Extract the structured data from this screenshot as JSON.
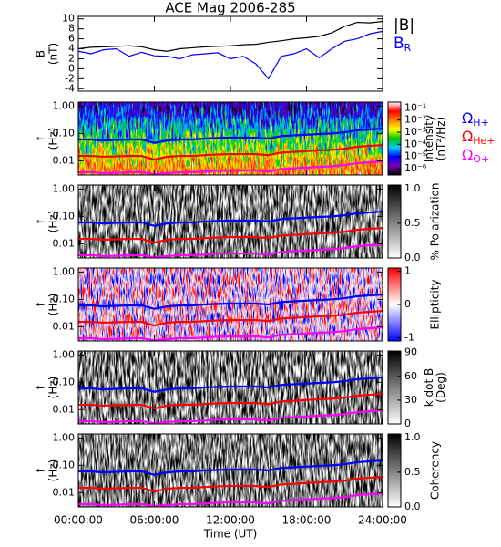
{
  "chart_data": [
    {
      "type": "line",
      "title": "ACE Mag 2006-285",
      "ylabel": [
        "B",
        "(nT)"
      ],
      "x": [
        0,
        1,
        2,
        3,
        4,
        5,
        6,
        7,
        8,
        9,
        10,
        11,
        12,
        13,
        14,
        15,
        16,
        17,
        18,
        19,
        20,
        21,
        22,
        23,
        24
      ],
      "xlim": [
        0,
        24
      ],
      "xticks": [
        {
          "value": 0,
          "label": "00:00:00"
        },
        {
          "value": 6,
          "label": "06:00:00"
        },
        {
          "value": 12,
          "label": "12:00:00"
        },
        {
          "value": 18,
          "label": "18:00:00"
        },
        {
          "value": 24,
          "label": "24:00:00"
        }
      ],
      "ylim": [
        -4.5,
        10.5
      ],
      "yticks": [
        -4,
        -2,
        0,
        2,
        4,
        6,
        8,
        10
      ],
      "series": [
        {
          "name": "|B|",
          "color": "#000000",
          "values": [
            4,
            4.3,
            4.4,
            4.5,
            4.6,
            4.4,
            3.8,
            3.5,
            4,
            4.2,
            4.4,
            4.5,
            4.6,
            4.8,
            4.9,
            5.3,
            5.6,
            6,
            6.2,
            6.5,
            7.2,
            8.5,
            9.3,
            9.2,
            9.5
          ]
        },
        {
          "name": "BR",
          "color": "#0000ff",
          "values": [
            3.5,
            3,
            3.8,
            4,
            2.5,
            3.3,
            2.6,
            2.5,
            2,
            2.8,
            3,
            3.2,
            2,
            2.5,
            1,
            -2,
            2.5,
            3,
            4,
            2.2,
            4,
            5.5,
            6,
            7,
            7.5
          ]
        }
      ]
    },
    {
      "type": "spectrogram",
      "ylabel": [
        "f",
        "(Hz)"
      ],
      "log_y": true,
      "x": [
        0,
        1,
        2,
        3,
        4,
        5,
        6,
        7,
        8,
        9,
        10,
        11,
        12,
        13,
        14,
        15,
        16,
        17,
        18,
        19,
        20,
        21,
        22,
        23,
        24
      ],
      "xlim": [
        0,
        24
      ],
      "xticks": [
        {
          "value": 0,
          "label": "00:00:00"
        },
        {
          "value": 6,
          "label": "06:00:00"
        },
        {
          "value": 12,
          "label": "12:00:00"
        },
        {
          "value": 18,
          "label": "18:00:00"
        },
        {
          "value": 24,
          "label": "24:00:00"
        }
      ],
      "ylim": [
        0.003,
        1.4
      ],
      "yticks": [
        {
          "value": 1,
          "label": "1.00"
        },
        {
          "value": 0.1,
          "label": "0.10"
        },
        {
          "value": 0.01,
          "label": "0.01"
        }
      ],
      "colorbar": {
        "label": [
          "Intensity",
          "(nT²/Hz)"
        ],
        "log": true,
        "lim": [
          3e-07,
          0.3
        ],
        "ticks": [
          {
            "value": 0.1,
            "label": "10⁻¹"
          },
          {
            "value": 0.01,
            "label": "10⁻²"
          },
          {
            "value": 0.001,
            "label": "10⁻³"
          },
          {
            "value": 0.0001,
            "label": "10⁻⁴"
          },
          {
            "value": 1e-05,
            "label": "10⁻⁵"
          },
          {
            "value": 1e-06,
            "label": "10⁻⁶"
          }
        ],
        "colors": [
          "#000000",
          "#7a00b0",
          "#0000ff",
          "#00c8ff",
          "#00c800",
          "#ffff00",
          "#ff8000",
          "#ff0000",
          "#ffffff"
        ]
      },
      "series": [
        {
          "name": "ΩH+",
          "color": "#0000ff",
          "values": [
            0.06,
            0.06,
            0.055,
            0.058,
            0.06,
            0.06,
            0.045,
            0.055,
            0.06,
            0.06,
            0.065,
            0.068,
            0.07,
            0.07,
            0.07,
            0.065,
            0.08,
            0.085,
            0.09,
            0.095,
            0.1,
            0.11,
            0.13,
            0.14,
            0.15
          ]
        },
        {
          "name": "ΩHe+",
          "color": "#ff0000",
          "values": [
            0.015,
            0.015,
            0.014,
            0.0145,
            0.015,
            0.015,
            0.011,
            0.014,
            0.015,
            0.015,
            0.016,
            0.017,
            0.0175,
            0.0175,
            0.0175,
            0.016,
            0.02,
            0.021,
            0.0225,
            0.024,
            0.025,
            0.0275,
            0.0325,
            0.035,
            0.0375
          ]
        },
        {
          "name": "ΩO+",
          "color": "#ff00ff",
          "values": [
            0.0038,
            0.0038,
            0.0035,
            0.0036,
            0.0038,
            0.0038,
            0.0032,
            0.0035,
            0.0038,
            0.0038,
            0.004,
            0.0043,
            0.0044,
            0.0044,
            0.0044,
            0.004,
            0.005,
            0.0053,
            0.0056,
            0.006,
            0.0063,
            0.0069,
            0.0081,
            0.0088,
            0.0094
          ]
        }
      ]
    },
    {
      "type": "spectrogram",
      "ylabel": [
        "f",
        "(Hz)"
      ],
      "log_y": true,
      "x": [
        0,
        1,
        2,
        3,
        4,
        5,
        6,
        7,
        8,
        9,
        10,
        11,
        12,
        13,
        14,
        15,
        16,
        17,
        18,
        19,
        20,
        21,
        22,
        23,
        24
      ],
      "xlim": [
        0,
        24
      ],
      "xticks": [
        {
          "value": 0,
          "label": "00:00:00"
        },
        {
          "value": 6,
          "label": "06:00:00"
        },
        {
          "value": 12,
          "label": "12:00:00"
        },
        {
          "value": 18,
          "label": "18:00:00"
        },
        {
          "value": 24,
          "label": "24:00:00"
        }
      ],
      "ylim": [
        0.003,
        1.4
      ],
      "yticks": [
        {
          "value": 1,
          "label": "1.00"
        },
        {
          "value": 0.1,
          "label": "0.10"
        },
        {
          "value": 0.01,
          "label": "0.01"
        }
      ],
      "colorbar": {
        "label": [
          "% Polarization"
        ],
        "log": false,
        "lim": [
          0,
          1.05
        ],
        "ticks": [
          {
            "value": 0,
            "label": "0.0"
          },
          {
            "value": 0.5,
            "label": "0.5"
          },
          {
            "value": 1,
            "label": "1.0"
          }
        ],
        "colors": [
          "#ffffff",
          "#000000"
        ]
      },
      "series": [
        {
          "color": "#0000ff",
          "values": [
            0.06,
            0.06,
            0.055,
            0.058,
            0.06,
            0.06,
            0.045,
            0.055,
            0.06,
            0.06,
            0.065,
            0.068,
            0.07,
            0.07,
            0.07,
            0.065,
            0.08,
            0.085,
            0.09,
            0.095,
            0.1,
            0.11,
            0.13,
            0.14,
            0.15
          ]
        },
        {
          "color": "#ff0000",
          "values": [
            0.015,
            0.015,
            0.014,
            0.0145,
            0.015,
            0.015,
            0.011,
            0.014,
            0.015,
            0.015,
            0.016,
            0.017,
            0.0175,
            0.0175,
            0.0175,
            0.016,
            0.02,
            0.021,
            0.0225,
            0.024,
            0.025,
            0.0275,
            0.0325,
            0.035,
            0.0375
          ]
        },
        {
          "color": "#ff00ff",
          "values": [
            0.0038,
            0.0038,
            0.0035,
            0.0036,
            0.0038,
            0.0038,
            0.0032,
            0.0035,
            0.0038,
            0.0038,
            0.004,
            0.0043,
            0.0044,
            0.0044,
            0.0044,
            0.004,
            0.005,
            0.0053,
            0.0056,
            0.006,
            0.0063,
            0.0069,
            0.0081,
            0.0088,
            0.0094
          ]
        }
      ]
    },
    {
      "type": "spectrogram",
      "ylabel": [
        "f",
        "(Hz)"
      ],
      "log_y": true,
      "x": [
        0,
        1,
        2,
        3,
        4,
        5,
        6,
        7,
        8,
        9,
        10,
        11,
        12,
        13,
        14,
        15,
        16,
        17,
        18,
        19,
        20,
        21,
        22,
        23,
        24
      ],
      "xlim": [
        0,
        24
      ],
      "xticks": [
        {
          "value": 0,
          "label": "00:00:00"
        },
        {
          "value": 6,
          "label": "06:00:00"
        },
        {
          "value": 12,
          "label": "12:00:00"
        },
        {
          "value": 18,
          "label": "18:00:00"
        },
        {
          "value": 24,
          "label": "24:00:00"
        }
      ],
      "ylim": [
        0.003,
        1.4
      ],
      "yticks": [
        {
          "value": 1,
          "label": "1.00"
        },
        {
          "value": 0.1,
          "label": "0.10"
        },
        {
          "value": 0.01,
          "label": "0.01"
        }
      ],
      "colorbar": {
        "label": [
          "Ellipticity"
        ],
        "log": false,
        "lim": [
          -1.1,
          1.1
        ],
        "ticks": [
          -1,
          0,
          1
        ],
        "colors": [
          "#0000ff",
          "#ffffff",
          "#ff0000"
        ]
      },
      "series": [
        {
          "color": "#0000ff",
          "values": [
            0.06,
            0.06,
            0.055,
            0.058,
            0.06,
            0.06,
            0.045,
            0.055,
            0.06,
            0.06,
            0.065,
            0.068,
            0.07,
            0.07,
            0.07,
            0.065,
            0.08,
            0.085,
            0.09,
            0.095,
            0.1,
            0.11,
            0.13,
            0.14,
            0.15
          ]
        },
        {
          "color": "#ff0000",
          "values": [
            0.015,
            0.015,
            0.014,
            0.0145,
            0.015,
            0.015,
            0.011,
            0.014,
            0.015,
            0.015,
            0.016,
            0.017,
            0.0175,
            0.0175,
            0.0175,
            0.016,
            0.02,
            0.021,
            0.0225,
            0.024,
            0.025,
            0.0275,
            0.0325,
            0.035,
            0.0375
          ]
        },
        {
          "color": "#ff00ff",
          "values": [
            0.0038,
            0.0038,
            0.0035,
            0.0036,
            0.0038,
            0.0038,
            0.0032,
            0.0035,
            0.0038,
            0.0038,
            0.004,
            0.0043,
            0.0044,
            0.0044,
            0.0044,
            0.004,
            0.005,
            0.0053,
            0.0056,
            0.006,
            0.0063,
            0.0069,
            0.0081,
            0.0088,
            0.0094
          ]
        }
      ]
    },
    {
      "type": "spectrogram",
      "ylabel": [
        "f",
        "(Hz)"
      ],
      "log_y": true,
      "x": [
        0,
        1,
        2,
        3,
        4,
        5,
        6,
        7,
        8,
        9,
        10,
        11,
        12,
        13,
        14,
        15,
        16,
        17,
        18,
        19,
        20,
        21,
        22,
        23,
        24
      ],
      "xlim": [
        0,
        24
      ],
      "xticks": [
        {
          "value": 0,
          "label": "00:00:00"
        },
        {
          "value": 6,
          "label": "06:00:00"
        },
        {
          "value": 12,
          "label": "12:00:00"
        },
        {
          "value": 18,
          "label": "18:00:00"
        },
        {
          "value": 24,
          "label": "24:00:00"
        }
      ],
      "ylim": [
        0.003,
        1.4
      ],
      "yticks": [
        {
          "value": 1,
          "label": "1.00"
        },
        {
          "value": 0.1,
          "label": "0.10"
        },
        {
          "value": 0.01,
          "label": "0.01"
        }
      ],
      "colorbar": {
        "label": [
          "k dot B",
          "(Deg)"
        ],
        "log": false,
        "lim": [
          0,
          92
        ],
        "ticks": [
          0,
          30,
          60,
          90
        ],
        "colors": [
          "#ffffff",
          "#000000"
        ]
      },
      "series": [
        {
          "color": "#0000ff",
          "values": [
            0.06,
            0.06,
            0.055,
            0.058,
            0.06,
            0.06,
            0.045,
            0.055,
            0.06,
            0.06,
            0.065,
            0.068,
            0.07,
            0.07,
            0.07,
            0.065,
            0.08,
            0.085,
            0.09,
            0.095,
            0.1,
            0.11,
            0.13,
            0.14,
            0.15
          ]
        },
        {
          "color": "#ff0000",
          "values": [
            0.015,
            0.015,
            0.014,
            0.0145,
            0.015,
            0.015,
            0.011,
            0.014,
            0.015,
            0.015,
            0.016,
            0.017,
            0.0175,
            0.0175,
            0.0175,
            0.016,
            0.02,
            0.021,
            0.0225,
            0.024,
            0.025,
            0.0275,
            0.0325,
            0.035,
            0.0375
          ]
        },
        {
          "color": "#ff00ff",
          "values": [
            0.0038,
            0.0038,
            0.0035,
            0.0036,
            0.0038,
            0.0038,
            0.0032,
            0.0035,
            0.0038,
            0.0038,
            0.004,
            0.0043,
            0.0044,
            0.0044,
            0.0044,
            0.004,
            0.005,
            0.0053,
            0.0056,
            0.006,
            0.0063,
            0.0069,
            0.0081,
            0.0088,
            0.0094
          ]
        }
      ]
    },
    {
      "type": "spectrogram",
      "ylabel": [
        "f",
        "(Hz)"
      ],
      "log_y": true,
      "x": [
        0,
        1,
        2,
        3,
        4,
        5,
        6,
        7,
        8,
        9,
        10,
        11,
        12,
        13,
        14,
        15,
        16,
        17,
        18,
        19,
        20,
        21,
        22,
        23,
        24
      ],
      "xlim": [
        0,
        24
      ],
      "xticks": [
        {
          "value": 0,
          "label": "00:00:00"
        },
        {
          "value": 6,
          "label": "06:00:00"
        },
        {
          "value": 12,
          "label": "12:00:00"
        },
        {
          "value": 18,
          "label": "18:00:00"
        },
        {
          "value": 24,
          "label": "24:00:00"
        }
      ],
      "xlabel": "Time (UT)",
      "ylim": [
        0.003,
        1.4
      ],
      "yticks": [
        {
          "value": 1,
          "label": "1.00"
        },
        {
          "value": 0.1,
          "label": "0.10"
        },
        {
          "value": 0.01,
          "label": "0.01"
        }
      ],
      "colorbar": {
        "label": [
          "Coherency"
        ],
        "log": false,
        "lim": [
          0,
          1.05
        ],
        "ticks": [
          {
            "value": 0,
            "label": "0.0"
          },
          {
            "value": 0.5,
            "label": "0.5"
          },
          {
            "value": 1,
            "label": "1.0"
          }
        ],
        "colors": [
          "#ffffff",
          "#000000"
        ]
      },
      "series": [
        {
          "color": "#0000ff",
          "values": [
            0.06,
            0.06,
            0.055,
            0.058,
            0.06,
            0.06,
            0.045,
            0.055,
            0.06,
            0.06,
            0.065,
            0.068,
            0.07,
            0.07,
            0.07,
            0.065,
            0.08,
            0.085,
            0.09,
            0.095,
            0.1,
            0.11,
            0.13,
            0.14,
            0.15
          ]
        },
        {
          "color": "#ff0000",
          "values": [
            0.015,
            0.015,
            0.014,
            0.0145,
            0.015,
            0.015,
            0.011,
            0.014,
            0.015,
            0.015,
            0.016,
            0.017,
            0.0175,
            0.0175,
            0.0175,
            0.016,
            0.02,
            0.021,
            0.0225,
            0.024,
            0.025,
            0.0275,
            0.0325,
            0.035,
            0.0375
          ]
        },
        {
          "color": "#ff00ff",
          "values": [
            0.0038,
            0.0038,
            0.0035,
            0.0036,
            0.0038,
            0.0038,
            0.0032,
            0.0035,
            0.0038,
            0.0038,
            0.004,
            0.0043,
            0.0044,
            0.0044,
            0.0044,
            0.004,
            0.005,
            0.0053,
            0.0056,
            0.006,
            0.0063,
            0.0069,
            0.0081,
            0.0088,
            0.0094
          ]
        }
      ]
    }
  ]
}
